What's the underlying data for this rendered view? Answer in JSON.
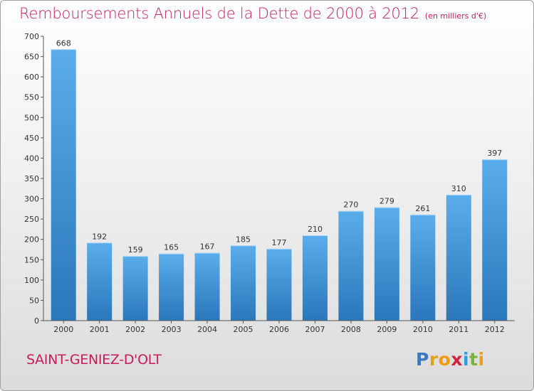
{
  "chart_data": {
    "type": "bar",
    "title": "Remboursements Annuels de la Dette de 2000 à 2012",
    "subtitle": "(en milliers d'€)",
    "categories": [
      "2000",
      "2001",
      "2002",
      "2003",
      "2004",
      "2005",
      "2006",
      "2007",
      "2008",
      "2009",
      "2010",
      "2011",
      "2012"
    ],
    "values": [
      668,
      192,
      159,
      165,
      167,
      185,
      177,
      210,
      270,
      279,
      261,
      310,
      397
    ],
    "ylim": [
      0,
      700
    ],
    "yticks": [
      0,
      50,
      100,
      150,
      200,
      250,
      300,
      350,
      400,
      450,
      500,
      550,
      600,
      650,
      700
    ],
    "grid": false,
    "bar_color": "#3c8fd6"
  },
  "footer": {
    "commune": "SAINT-GENIEZ-D'OLT",
    "logo": "Proxiti"
  }
}
